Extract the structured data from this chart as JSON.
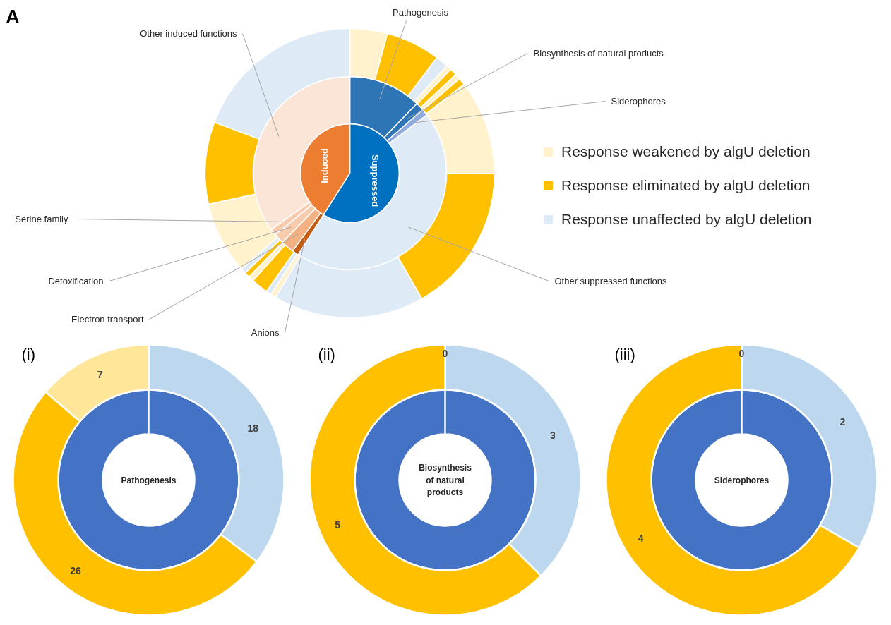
{
  "chart_data": [
    {
      "type": "donut",
      "annotations": [
        "A",
        "Suppressed",
        "Induced",
        "Pathogenesis",
        "Biosynthesis of natural products",
        "Siderophores",
        "Other suppressed functions",
        "Anions",
        "Electron transport",
        "Detoxification",
        "Serine family",
        "Other induced functions",
        "Response weakened by algU deletion",
        "Response eliminated by algU deletion",
        "Response unaffected by algU deletion"
      ],
      "series": [
        {
          "type": "pie",
          "values": [
            59,
            41
          ],
          "colors": [
            "#0070c0",
            "#ed7d31"
          ]
        },
        {
          "values": [
            12.2,
            1.4,
            1.1,
            44.3,
            1.1,
            2.2,
            1.7,
            1.1,
            34.9
          ],
          "colors": [
            "#2e75b6",
            "#2e75b6",
            "#8faadc",
            "#deebf7",
            "#c55a11",
            "#f4b183",
            "#f8cbad",
            "#f8cbad",
            "#fbe5d6"
          ]
        },
        {
          "values": [
            4.2,
            6.1,
            1.4,
            0.6,
            0.8,
            0.6,
            0.8,
            10.6,
            16.7,
            16.9,
            0.6,
            0.6,
            1.9,
            0.6,
            0.6,
            0.6,
            8.1,
            9.2,
            19.3
          ],
          "colors": [
            "#fff2cc",
            "#ffc000",
            "#deebf7",
            "#fff2cc",
            "#ffc000",
            "#fff2cc",
            "#ffc000",
            "#fff2cc",
            "#ffc000",
            "#deebf7",
            "#fff2cc",
            "#deebf7",
            "#ffc000",
            "#fff2cc",
            "#ffc000",
            "#deebf7",
            "#fff2cc",
            "#ffc000",
            "#deebf7"
          ]
        }
      ]
    },
    {
      "type": "donut",
      "title": "(i)",
      "annotations": [
        "Pathogenesis"
      ],
      "series": [
        {
          "values": [
            100
          ],
          "colors": [
            "#4472c4"
          ]
        },
        {
          "values": [
            18,
            26,
            7
          ],
          "colors": [
            "#bdd7ee",
            "#ffc000",
            "#ffe699"
          ],
          "value_labels": [
            "18",
            "26",
            "7"
          ]
        }
      ]
    },
    {
      "type": "donut",
      "title": "(ii)",
      "annotations": [
        "Biosynthesis of natural products"
      ],
      "series": [
        {
          "values": [
            100
          ],
          "colors": [
            "#4472c4"
          ]
        },
        {
          "values": [
            3,
            5,
            0
          ],
          "colors": [
            "#bdd7ee",
            "#ffc000",
            "#ffe699"
          ],
          "value_labels": [
            "3",
            "5",
            "0"
          ]
        }
      ]
    },
    {
      "type": "donut",
      "title": "(iii)",
      "annotations": [
        "Siderophores"
      ],
      "series": [
        {
          "values": [
            100
          ],
          "colors": [
            "#4472c4"
          ]
        },
        {
          "values": [
            2,
            4,
            0
          ],
          "colors": [
            "#bdd7ee",
            "#ffc000",
            "#ffe699"
          ],
          "value_labels": [
            "2",
            "4",
            "0"
          ]
        }
      ]
    }
  ]
}
